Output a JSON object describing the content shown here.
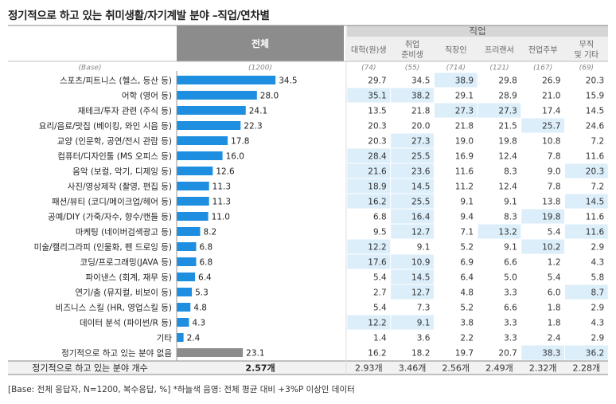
{
  "title": "정기적으로 하고 있는 취미생활/자기계발 분야 –직업/연차별",
  "footnote": "[Base: 전체 응답자, N=1200, 복수응답, %] *하늘색 음영: 전체 평균 대비 +3%P 이상인 데이터",
  "colors": {
    "bar": "#1e8fe0",
    "bar_none": "#8c8c8c",
    "header_total": "#8c8c8c",
    "header_group": "#d6d6d6",
    "header_sub": "#efefef",
    "highlight": "#dbeefa"
  },
  "chart_data": {
    "type": "table",
    "base_label": "(Base)",
    "total_label": "전체",
    "total_base": "(1200)",
    "group_label": "직업",
    "columns": [
      {
        "label": [
          "대학(원)생"
        ],
        "base": "(74)"
      },
      {
        "label": [
          "취업",
          "준비생"
        ],
        "base": "(55)"
      },
      {
        "label": [
          "직장인"
        ],
        "base": "(714)"
      },
      {
        "label": [
          "프리랜서"
        ],
        "base": "(121)"
      },
      {
        "label": [
          "전업주부"
        ],
        "base": "(167)"
      },
      {
        "label": [
          "무직",
          "및 기타"
        ],
        "base": "(69)"
      }
    ],
    "rows": [
      {
        "label": "스포츠/피트니스 (헬스, 등산 등)",
        "total": 34.5,
        "values": [
          "29.7",
          "34.5",
          "38.9",
          "29.8",
          "26.9",
          "20.3"
        ],
        "highlight": [
          2
        ]
      },
      {
        "label": "어학 (영어 등)",
        "total": 28.0,
        "values": [
          "35.1",
          "38.2",
          "29.1",
          "28.9",
          "21.0",
          "15.9"
        ],
        "highlight": [
          0,
          1
        ]
      },
      {
        "label": "재테크/투자 관련 (주식 등)",
        "total": 24.1,
        "values": [
          "13.5",
          "21.8",
          "27.3",
          "27.3",
          "17.4",
          "14.5"
        ],
        "highlight": [
          2,
          3
        ]
      },
      {
        "label": "요리/음료/맛집 (베이킹, 와인 시음 등)",
        "total": 22.3,
        "values": [
          "20.3",
          "20.0",
          "21.8",
          "21.5",
          "25.7",
          "24.6"
        ],
        "highlight": [
          4
        ]
      },
      {
        "label": "교양 (인문학, 공연/전시 관람 등)",
        "total": 17.8,
        "values": [
          "20.3",
          "27.3",
          "19.0",
          "19.8",
          "10.8",
          "7.2"
        ],
        "highlight": [
          1
        ]
      },
      {
        "label": "컴퓨터/디자인툴 (MS 오피스 등)",
        "total": 16.0,
        "values": [
          "28.4",
          "25.5",
          "16.9",
          "12.4",
          "7.8",
          "11.6"
        ],
        "highlight": [
          0,
          1
        ]
      },
      {
        "label": "음악 (보컬, 악기, 디제잉 등)",
        "total": 12.6,
        "values": [
          "21.6",
          "23.6",
          "11.6",
          "8.3",
          "9.0",
          "20.3"
        ],
        "highlight": [
          0,
          1,
          5
        ]
      },
      {
        "label": "사진/영상제작 (촬영, 편집 등)",
        "total": 11.3,
        "values": [
          "18.9",
          "14.5",
          "11.2",
          "12.4",
          "7.8",
          "7.2"
        ],
        "highlight": [
          0,
          1
        ]
      },
      {
        "label": "패션/뷰티 (코디/메이크업/헤어 등)",
        "total": 11.3,
        "values": [
          "16.2",
          "25.5",
          "9.1",
          "9.1",
          "13.8",
          "14.5"
        ],
        "highlight": [
          0,
          1,
          5
        ]
      },
      {
        "label": "공예/DIY (가죽/자수, 향수/캔들 등)",
        "total": 11.0,
        "values": [
          "6.8",
          "16.4",
          "9.4",
          "8.3",
          "19.8",
          "11.6"
        ],
        "highlight": [
          1,
          4
        ]
      },
      {
        "label": "마케팅 (네이버검색광고 등)",
        "total": 8.2,
        "values": [
          "9.5",
          "12.7",
          "7.1",
          "13.2",
          "5.4",
          "11.6"
        ],
        "highlight": [
          1,
          3,
          5
        ]
      },
      {
        "label": "미술/캘리그라피 (인물화, 펜 드로잉 등)",
        "total": 6.8,
        "values": [
          "12.2",
          "9.1",
          "5.2",
          "9.1",
          "10.2",
          "2.9"
        ],
        "highlight": [
          0,
          4
        ]
      },
      {
        "label": "코딩/프로그래밍(JAVA 등)",
        "total": 6.8,
        "values": [
          "17.6",
          "10.9",
          "6.9",
          "6.6",
          "1.2",
          "4.3"
        ],
        "highlight": [
          0,
          1
        ]
      },
      {
        "label": "파이낸스 (회계, 재무 등)",
        "total": 6.4,
        "values": [
          "5.4",
          "14.5",
          "6.4",
          "5.0",
          "5.4",
          "5.8"
        ],
        "highlight": [
          1
        ]
      },
      {
        "label": "연기/춤 (뮤지컬, 비보이 등)",
        "total": 5.3,
        "values": [
          "2.7",
          "12.7",
          "4.8",
          "3.3",
          "6.0",
          "8.7"
        ],
        "highlight": [
          1,
          5
        ]
      },
      {
        "label": "비즈니스 스킬 (HR, 영업스킬 등)",
        "total": 4.8,
        "values": [
          "5.4",
          "7.3",
          "5.2",
          "6.6",
          "1.8",
          "2.9"
        ],
        "highlight": []
      },
      {
        "label": "데이터 분석 (파이썬/R 등)",
        "total": 4.3,
        "values": [
          "12.2",
          "9.1",
          "3.8",
          "3.3",
          "1.8",
          "4.3"
        ],
        "highlight": [
          0,
          1
        ]
      },
      {
        "label": "기타",
        "total": 2.4,
        "values": [
          "1.4",
          "3.6",
          "2.2",
          "3.3",
          "2.4",
          "2.9"
        ],
        "highlight": []
      },
      {
        "label": "정기적으로 하고 있는 분야 없음",
        "total": 23.1,
        "values": [
          "16.2",
          "18.2",
          "19.7",
          "20.7",
          "38.3",
          "36.2"
        ],
        "highlight": [
          4,
          5
        ],
        "gray": true
      }
    ],
    "summary": {
      "label": "정기적으로 하고 있는 분야 개수",
      "total": "2.57개",
      "values": [
        "2.93개",
        "3.46개",
        "2.56개",
        "2.49개",
        "2.32개",
        "2.28개"
      ]
    }
  }
}
